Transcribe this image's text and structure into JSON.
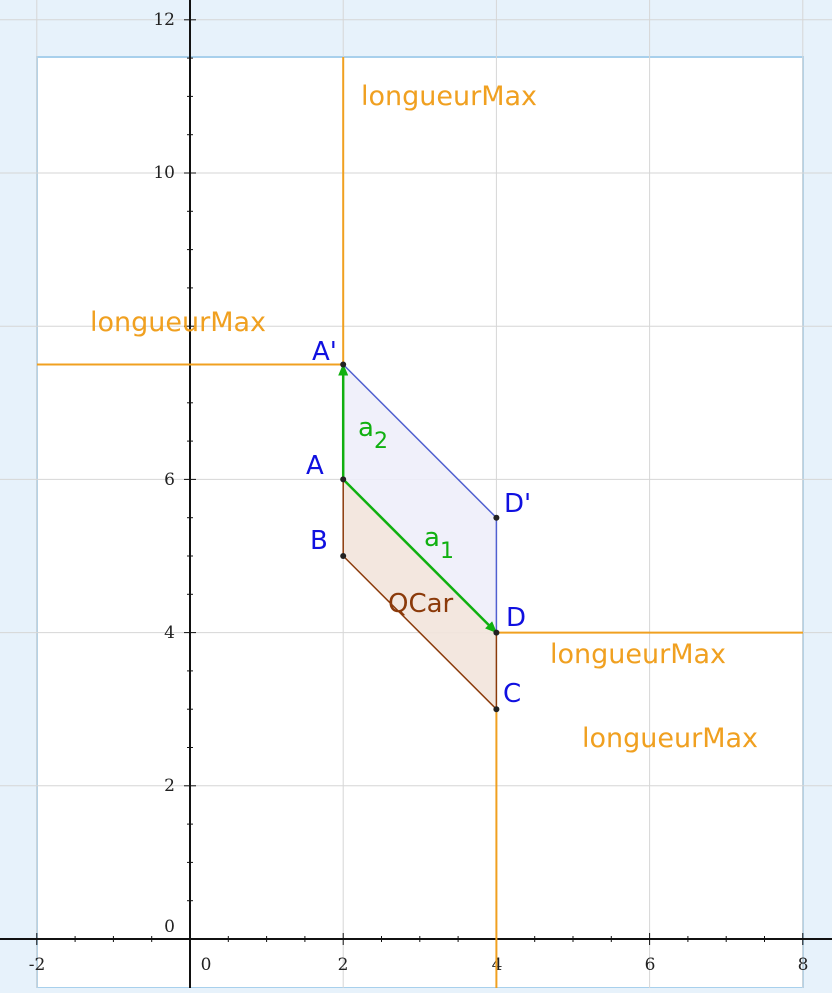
{
  "axes": {
    "x_ticks": [
      "-2",
      "0",
      "2",
      "4",
      "6",
      "8"
    ],
    "y_ticks": [
      "0",
      "2",
      "4",
      "6",
      "10",
      "12"
    ],
    "x_range": [
      -2.5,
      8.4
    ],
    "y_range": [
      -0.1,
      12.2
    ],
    "grid": true
  },
  "points": {
    "A": {
      "label": "A",
      "x": 2,
      "y": 6
    },
    "B": {
      "label": "B",
      "x": 2,
      "y": 5
    },
    "C": {
      "label": "C",
      "x": 4,
      "y": 3
    },
    "D": {
      "label": "D",
      "x": 4,
      "y": 4
    },
    "A2": {
      "label": "A'",
      "x": 2,
      "y": 7.5
    },
    "D2": {
      "label": "D'",
      "x": 4,
      "y": 5.5
    }
  },
  "vectors": {
    "a1": {
      "name": "a",
      "sub": "1"
    },
    "a2": {
      "name": "a",
      "sub": "2"
    }
  },
  "polygon_label": "QCar",
  "max_labels": [
    "longueurMax",
    "longueurMax",
    "longueurMax",
    "longueurMax"
  ],
  "colors": {
    "point_label": "#1010e0",
    "vector": "#10b010",
    "quad_fill": "#f2e4dc",
    "quad_stroke": "#8b3a0a",
    "para_fill": "#eeeefa",
    "para_stroke": "#5060d0",
    "max_line": "#f0a020",
    "grid": "#d6d6d6",
    "frame": "#a8d0ec"
  }
}
